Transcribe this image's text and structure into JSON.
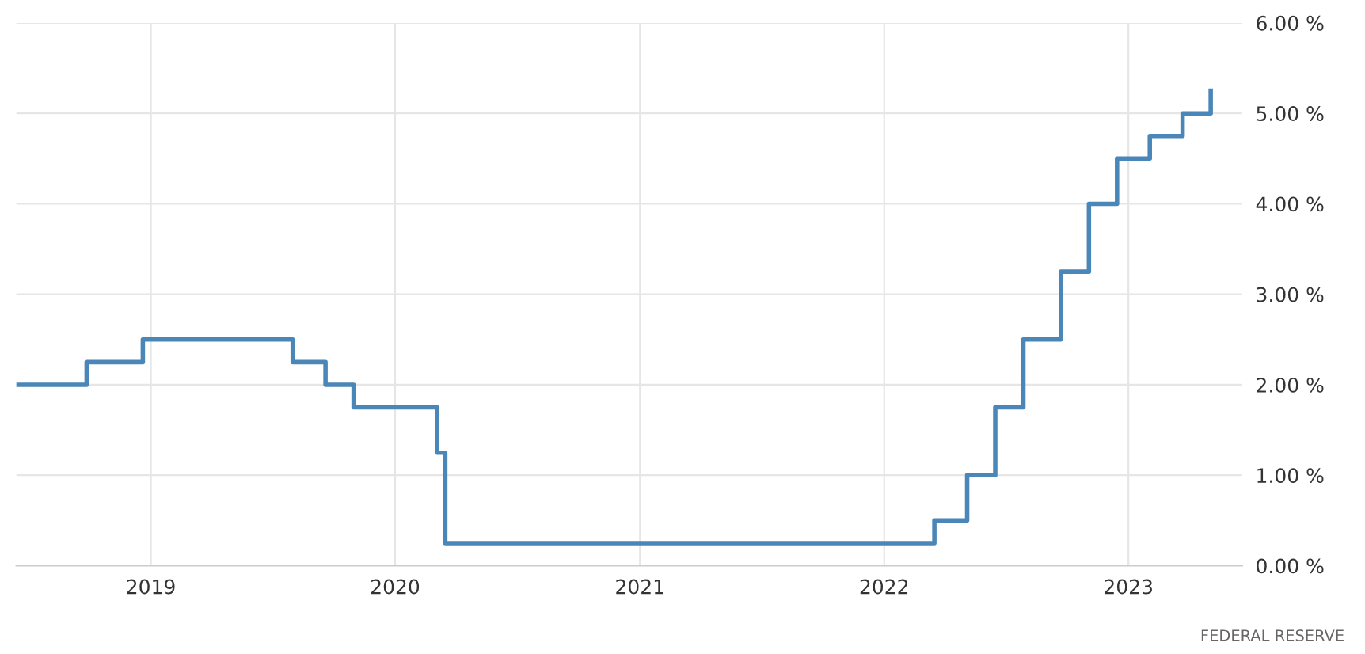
{
  "chart_data": {
    "type": "step",
    "x": [
      "2018-06-14",
      "2018-09-27",
      "2018-12-20",
      "2019-08-01",
      "2019-09-19",
      "2019-10-31",
      "2020-03-04",
      "2020-03-16",
      "2022-03-17",
      "2022-05-05",
      "2022-06-16",
      "2022-07-28",
      "2022-09-22",
      "2022-11-03",
      "2022-12-15",
      "2023-02-02",
      "2023-03-23",
      "2023-05-04"
    ],
    "series": [
      {
        "color": "#4a86b8",
        "values": [
          2.0,
          2.25,
          2.5,
          2.25,
          2.0,
          1.75,
          1.25,
          0.25,
          0.5,
          1.0,
          1.75,
          2.5,
          3.25,
          4.0,
          4.5,
          4.75,
          5.0,
          5.25
        ]
      }
    ],
    "xlim": [
      "2018-06-14",
      "2023-06-20"
    ],
    "xticks": [
      {
        "value": "2019-01-01",
        "label": "2019"
      },
      {
        "value": "2020-01-01",
        "label": "2020"
      },
      {
        "value": "2021-01-01",
        "label": "2021"
      },
      {
        "value": "2022-01-01",
        "label": "2022"
      },
      {
        "value": "2023-01-01",
        "label": "2023"
      }
    ],
    "ylim": [
      0,
      6
    ],
    "yticks": [
      {
        "value": 0,
        "label": "0.00 %"
      },
      {
        "value": 1,
        "label": "1.00 %"
      },
      {
        "value": 2,
        "label": "2.00 %"
      },
      {
        "value": 3,
        "label": "3.00 %"
      },
      {
        "value": 4,
        "label": "4.00 %"
      },
      {
        "value": 5,
        "label": "5.00 %"
      },
      {
        "value": 6,
        "label": "6.00 %"
      }
    ],
    "grid": true,
    "legend": false,
    "marker": "none",
    "line_style": "solid",
    "annotations": [
      "FEDERAL RESERVE"
    ]
  }
}
